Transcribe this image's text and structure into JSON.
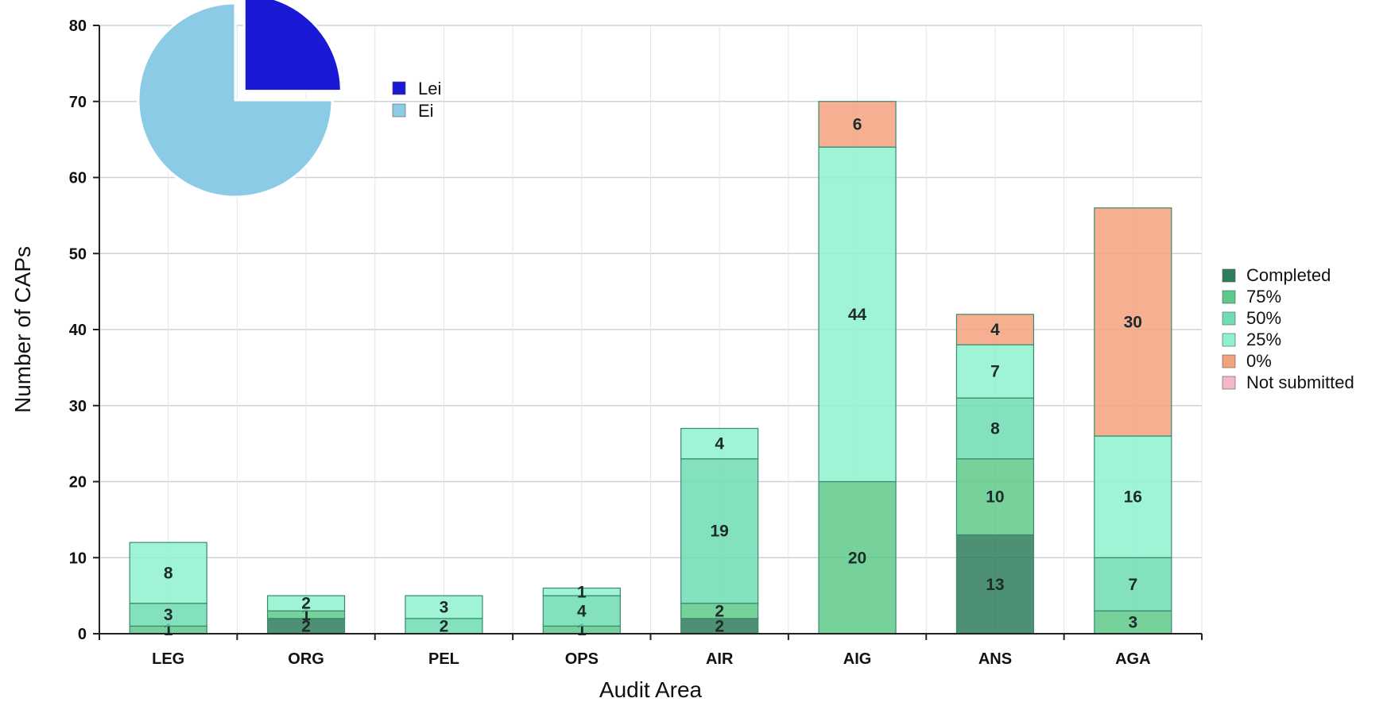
{
  "chart_data": [
    {
      "type": "bar",
      "stacked": true,
      "xlabel": "Audit Area",
      "ylabel": "Number of CAPs",
      "ylim": [
        0,
        80
      ],
      "yticks": [
        0,
        10,
        20,
        30,
        40,
        50,
        60,
        70,
        80
      ],
      "grid": true,
      "legend_placement": "right",
      "categories": [
        "LEG",
        "ORG",
        "PEL",
        "OPS",
        "AIR",
        "AIG",
        "ANS",
        "AGA"
      ],
      "series": [
        {
          "name": "Completed",
          "color": "#2e7d5b",
          "values": [
            0,
            2,
            0,
            0,
            2,
            0,
            13,
            0
          ]
        },
        {
          "name": "75%",
          "color": "#5ec98a",
          "values": [
            1,
            1,
            0,
            1,
            2,
            20,
            10,
            3
          ]
        },
        {
          "name": "50%",
          "color": "#6fdcb2",
          "values": [
            3,
            0,
            2,
            4,
            19,
            0,
            8,
            7
          ]
        },
        {
          "name": "25%",
          "color": "#8ef2cf",
          "values": [
            8,
            2,
            3,
            1,
            4,
            44,
            7,
            16
          ]
        },
        {
          "name": "0%",
          "color": "#f4a27e",
          "values": [
            0,
            0,
            0,
            0,
            0,
            6,
            4,
            30
          ]
        },
        {
          "name": "Not submitted",
          "color": "#f2b8c6",
          "values": [
            0,
            0,
            0,
            0,
            0,
            0,
            0,
            0
          ]
        }
      ]
    },
    {
      "type": "pie",
      "slices": [
        {
          "name": "Lei",
          "value": 25,
          "color": "#1a1ad6"
        },
        {
          "name": "Ei",
          "value": 75,
          "color": "#8ccbe6"
        }
      ],
      "legend_placement": "right"
    }
  ]
}
